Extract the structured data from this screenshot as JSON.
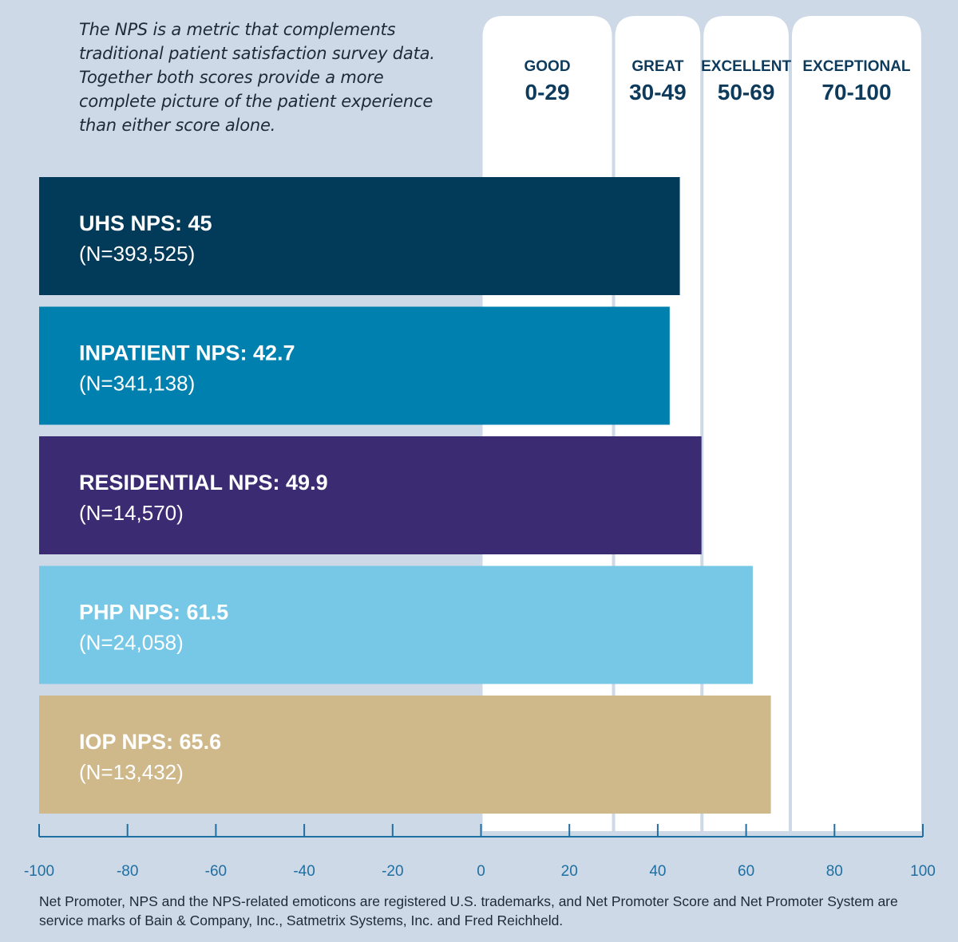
{
  "intro_text": "The NPS is a metric that complements traditional patient satisfaction survey data. Together both scores provide a more complete picture of the patient experience than either score alone.",
  "footnote": "Net Promoter, NPS and the NPS-related emoticons are registered U.S. trademarks, and Net Promoter Score and Net Promoter System are service marks of Bain & Company, Inc., Satmetrix Systems, Inc. and Fred Reichheld.",
  "colors": {
    "background": "#cdd9e6",
    "band_fill": "#ffffff",
    "band_text": "#0e3b5c",
    "axis": "#1f6fa3"
  },
  "chart_data": {
    "type": "bar",
    "orientation": "horizontal",
    "xlim": [
      -100,
      100
    ],
    "xticks": [
      -100,
      -80,
      -60,
      -40,
      -20,
      0,
      20,
      40,
      60,
      80,
      100
    ],
    "grid": false,
    "bands": [
      {
        "category": "GOOD",
        "range": "0-29",
        "start": 0,
        "end": 30
      },
      {
        "category": "GREAT",
        "range": "30-49",
        "start": 30,
        "end": 50
      },
      {
        "category": "EXCELLENT",
        "range": "50-69",
        "start": 50,
        "end": 70
      },
      {
        "category": "EXCEPTIONAL",
        "range": "70-100",
        "start": 70,
        "end": 100
      }
    ],
    "bars": [
      {
        "label": "UHS NPS: 45",
        "n": "(N=393,525)",
        "value": 45,
        "color": "#023a5a"
      },
      {
        "label": "INPATIENT NPS: 42.7",
        "n": "(N=341,138)",
        "value": 42.7,
        "color": "#0080ae"
      },
      {
        "label": "RESIDENTIAL NPS: 49.9",
        "n": "(N=14,570)",
        "value": 49.9,
        "color": "#3a2b72"
      },
      {
        "label": "PHP NPS: 61.5",
        "n": "(N=24,058)",
        "value": 61.5,
        "color": "#76c8e6"
      },
      {
        "label": "IOP NPS: 65.6",
        "n": "(N=13,432)",
        "value": 65.6,
        "color": "#cfb88a"
      }
    ]
  }
}
